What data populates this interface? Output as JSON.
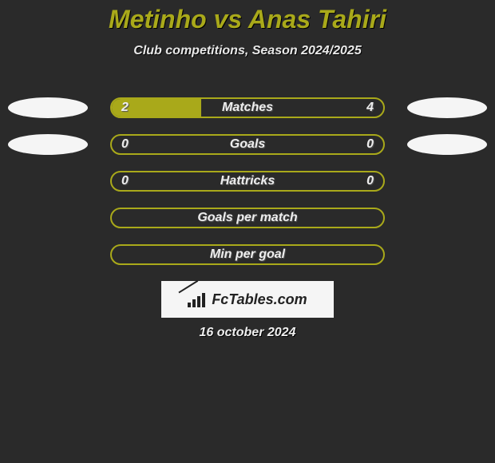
{
  "title": "Metinho vs Anas Tahiri",
  "subtitle": "Club competitions, Season 2024/2025",
  "accent_color": "#a9a91a",
  "background_color": "#2a2a2a",
  "oval_color": "#f5f5f5",
  "rows": [
    {
      "label": "Matches",
      "left": "2",
      "right": "4",
      "fill_pct": 33,
      "show_values": true,
      "show_left_oval": true,
      "show_right_oval": true
    },
    {
      "label": "Goals",
      "left": "0",
      "right": "0",
      "fill_pct": 0,
      "show_values": true,
      "show_left_oval": true,
      "show_right_oval": true
    },
    {
      "label": "Hattricks",
      "left": "0",
      "right": "0",
      "fill_pct": 0,
      "show_values": true,
      "show_left_oval": false,
      "show_right_oval": false
    },
    {
      "label": "Goals per match",
      "left": "",
      "right": "",
      "fill_pct": 0,
      "show_values": false,
      "show_left_oval": false,
      "show_right_oval": false
    },
    {
      "label": "Min per goal",
      "left": "",
      "right": "",
      "fill_pct": 0,
      "show_values": false,
      "show_left_oval": false,
      "show_right_oval": false
    }
  ],
  "logo_text": "FcTables.com",
  "date": "16 october 2024"
}
